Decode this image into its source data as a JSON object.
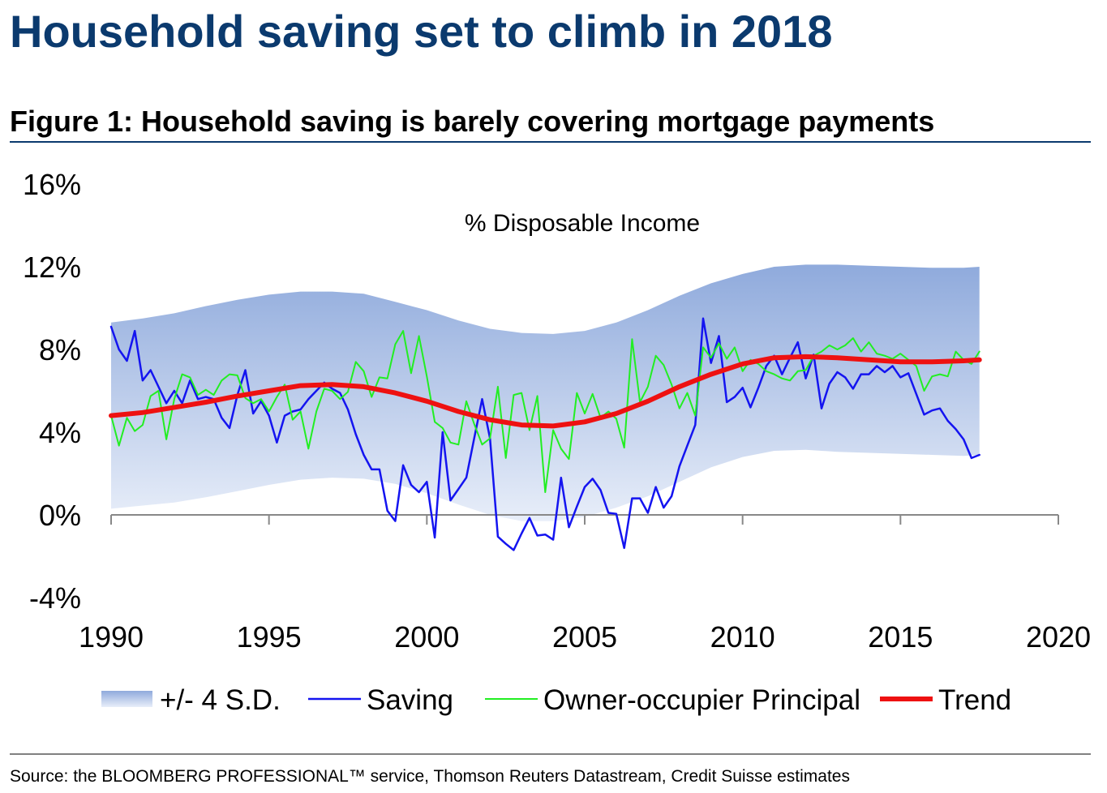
{
  "chart_data": {
    "type": "line",
    "title": "Household saving set to climb in 2018",
    "subtitle": "Figure 1: Household saving is barely covering mortgage payments",
    "annotation": "% Disposable Income",
    "source": "Source: the BLOOMBERG PROFESSIONAL™ service, Thomson Reuters Datastream, Credit Suisse estimates",
    "xlim": [
      1990,
      2020
    ],
    "xticks": [
      1990,
      1995,
      2000,
      2005,
      2010,
      2015,
      2020
    ],
    "ylim": [
      -4,
      16
    ],
    "yticks": [
      {
        "value": -4,
        "label": "-4%"
      },
      {
        "value": 0,
        "label": "0%"
      },
      {
        "value": 4,
        "label": "4%"
      },
      {
        "value": 8,
        "label": "8%"
      },
      {
        "value": 12,
        "label": "12%"
      },
      {
        "value": 16,
        "label": "16%"
      }
    ],
    "grid": false,
    "x": [
      1990,
      1990.25,
      1990.5,
      1990.75,
      1991,
      1991.25,
      1991.5,
      1991.75,
      1992,
      1992.25,
      1992.5,
      1992.75,
      1993,
      1993.25,
      1993.5,
      1993.75,
      1994,
      1994.25,
      1994.5,
      1994.75,
      1995,
      1995.25,
      1995.5,
      1995.75,
      1996,
      1996.25,
      1996.5,
      1996.75,
      1997,
      1997.25,
      1997.5,
      1997.75,
      1998,
      1998.25,
      1998.5,
      1998.75,
      1999,
      1999.25,
      1999.5,
      1999.75,
      2000,
      2000.25,
      2000.5,
      2000.75,
      2001,
      2001.25,
      2001.5,
      2001.75,
      2002,
      2002.25,
      2002.5,
      2002.75,
      2003,
      2003.25,
      2003.5,
      2003.75,
      2004,
      2004.25,
      2004.5,
      2004.75,
      2005,
      2005.25,
      2005.5,
      2005.75,
      2006,
      2006.25,
      2006.5,
      2006.75,
      2007,
      2007.25,
      2007.5,
      2007.75,
      2008,
      2008.25,
      2008.5,
      2008.75,
      2009,
      2009.25,
      2009.5,
      2009.75,
      2010,
      2010.25,
      2010.5,
      2010.75,
      2011,
      2011.25,
      2011.5,
      2011.75,
      2012,
      2012.25,
      2012.5,
      2012.75,
      2013,
      2013.25,
      2013.5,
      2013.75,
      2014,
      2014.25,
      2014.5,
      2014.75,
      2015,
      2015.25,
      2015.5,
      2015.75,
      2016,
      2016.25,
      2016.5,
      2016.75,
      2017,
      2017.25,
      2017.5
    ],
    "series": [
      {
        "name": "+/- 4 S.D.",
        "kind": "band",
        "color": "#8faadc",
        "x": [
          1990,
          1991,
          1992,
          1993,
          1994,
          1995,
          1996,
          1997,
          1998,
          1999,
          2000,
          2001,
          2002,
          2003,
          2004,
          2005,
          2006,
          2007,
          2008,
          2009,
          2010,
          2011,
          2012,
          2013,
          2014,
          2015,
          2016,
          2017,
          2017.5
        ],
        "upper": [
          9.3,
          9.5,
          9.75,
          10.1,
          10.4,
          10.65,
          10.8,
          10.8,
          10.7,
          10.3,
          9.9,
          9.4,
          9.0,
          8.8,
          8.75,
          8.9,
          9.3,
          9.9,
          10.6,
          11.2,
          11.65,
          12.0,
          12.1,
          12.1,
          12.05,
          12.0,
          11.95,
          11.95,
          12.0
        ],
        "lower": [
          0.3,
          0.45,
          0.6,
          0.85,
          1.15,
          1.45,
          1.7,
          1.8,
          1.75,
          1.5,
          1.05,
          0.5,
          0.0,
          -0.3,
          -0.3,
          -0.1,
          0.35,
          0.9,
          1.6,
          2.3,
          2.8,
          3.1,
          3.15,
          3.05,
          3.0,
          2.95,
          2.9,
          2.85,
          2.9
        ]
      },
      {
        "name": "Saving",
        "kind": "line",
        "color": "#1414f0",
        "width": 2.5,
        "values": [
          9.1,
          8.0,
          7.45,
          8.9,
          6.5,
          7.0,
          6.2,
          5.4,
          6.0,
          5.4,
          6.5,
          5.6,
          5.7,
          5.6,
          4.7,
          4.2,
          5.8,
          7.0,
          4.9,
          5.5,
          4.8,
          3.5,
          4.8,
          5.0,
          5.1,
          5.6,
          6.0,
          6.4,
          6.1,
          5.9,
          5.1,
          3.9,
          2.9,
          2.2,
          2.2,
          0.2,
          -0.3,
          2.4,
          1.45,
          1.1,
          1.6,
          -1.1,
          4.0,
          0.7,
          1.25,
          1.8,
          3.7,
          5.6,
          3.7,
          -1.05,
          -1.4,
          -1.7,
          -0.9,
          -0.15,
          -1.0,
          -0.95,
          -1.2,
          1.8,
          -0.6,
          0.4,
          1.35,
          1.75,
          1.2,
          0.1,
          0.05,
          -1.6,
          0.8,
          0.8,
          0.1,
          1.35,
          0.35,
          0.9,
          2.35,
          3.35,
          4.35,
          9.5,
          7.35,
          8.65,
          5.45,
          5.7,
          6.15,
          5.2,
          6.15,
          7.2,
          7.7,
          6.8,
          7.6,
          8.35,
          6.6,
          7.75,
          5.15,
          6.35,
          6.9,
          6.65,
          6.1,
          6.8,
          6.8,
          7.2,
          6.9,
          7.2,
          6.65,
          6.85,
          5.85,
          4.85,
          5.05,
          5.15,
          4.55,
          4.15,
          3.65,
          2.75,
          2.9
        ]
      },
      {
        "name": "Owner-occupier Principal",
        "kind": "line",
        "color": "#22ee22",
        "width": 2,
        "values": [
          4.8,
          3.35,
          4.7,
          4.05,
          4.35,
          5.75,
          6.0,
          3.65,
          5.6,
          6.8,
          6.65,
          5.8,
          6.05,
          5.8,
          6.5,
          6.8,
          6.75,
          5.65,
          5.4,
          5.6,
          5.0,
          5.7,
          6.3,
          4.6,
          5.0,
          3.2,
          5.0,
          6.1,
          6.0,
          5.6,
          5.95,
          7.4,
          6.95,
          5.7,
          6.65,
          6.6,
          8.25,
          8.9,
          6.85,
          8.65,
          6.7,
          4.5,
          4.2,
          3.5,
          3.4,
          5.5,
          4.4,
          3.4,
          3.7,
          6.2,
          2.75,
          5.8,
          5.9,
          4.1,
          5.75,
          1.1,
          4.1,
          3.2,
          2.7,
          5.9,
          4.9,
          5.85,
          4.7,
          5.0,
          4.65,
          3.25,
          8.5,
          5.45,
          6.2,
          7.7,
          7.25,
          6.3,
          5.15,
          5.9,
          4.8,
          8.1,
          7.6,
          8.3,
          7.55,
          8.1,
          6.95,
          7.5,
          7.3,
          6.95,
          6.8,
          6.6,
          6.5,
          6.95,
          7.0,
          7.7,
          7.9,
          8.2,
          8.0,
          8.2,
          8.55,
          7.9,
          8.35,
          7.8,
          7.7,
          7.55,
          7.8,
          7.5,
          7.2,
          6.0,
          6.7,
          6.8,
          6.7,
          7.9,
          7.5,
          7.3,
          7.9
        ]
      },
      {
        "name": "Trend",
        "kind": "line",
        "color": "#ee1111",
        "width": 6,
        "x": [
          1990,
          1991,
          1992,
          1993,
          1994,
          1995,
          1996,
          1997,
          1998,
          1999,
          2000,
          2001,
          2002,
          2003,
          2004,
          2005,
          2006,
          2007,
          2008,
          2009,
          2010,
          2011,
          2012,
          2013,
          2014,
          2015,
          2016,
          2017,
          2017.5
        ],
        "values": [
          4.8,
          4.95,
          5.2,
          5.45,
          5.75,
          6.0,
          6.25,
          6.3,
          6.2,
          5.9,
          5.5,
          5.0,
          4.6,
          4.35,
          4.3,
          4.5,
          4.9,
          5.5,
          6.2,
          6.8,
          7.3,
          7.6,
          7.65,
          7.6,
          7.5,
          7.4,
          7.4,
          7.45,
          7.5
        ]
      }
    ]
  }
}
